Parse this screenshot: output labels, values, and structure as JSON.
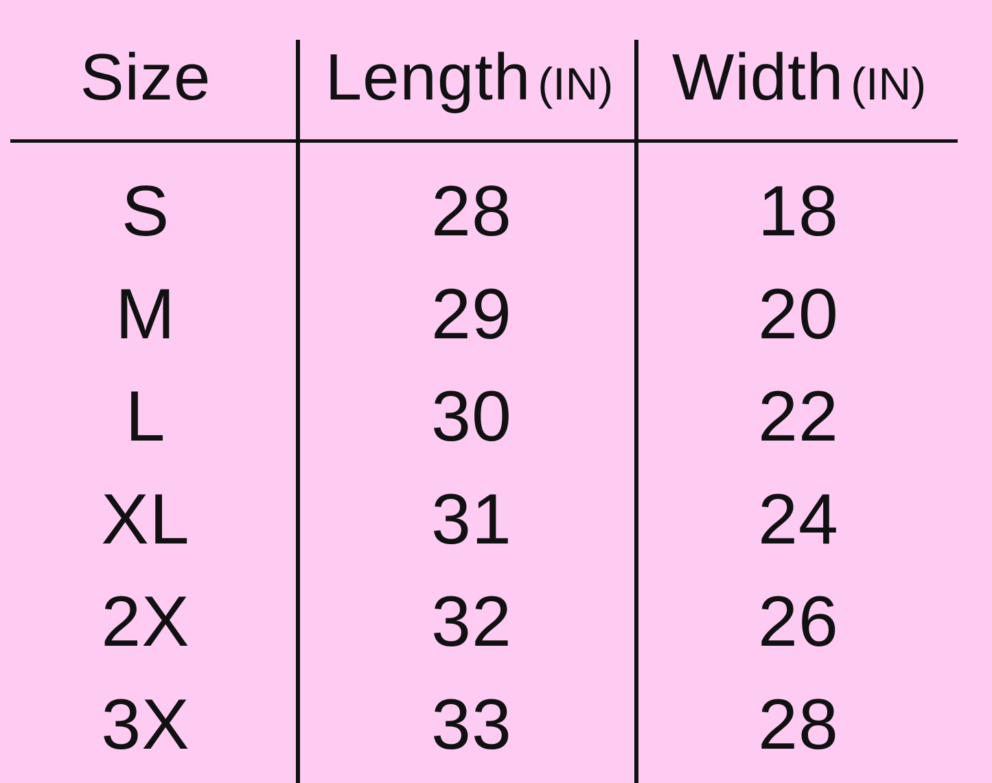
{
  "table": {
    "headers": [
      {
        "label": "Size",
        "unit": ""
      },
      {
        "label": "Length",
        "unit": "(IN)"
      },
      {
        "label": "Width",
        "unit": "(IN)"
      }
    ],
    "rows": [
      [
        "S",
        "28",
        "18"
      ],
      [
        "M",
        "29",
        "20"
      ],
      [
        "L",
        "30",
        "22"
      ],
      [
        "XL",
        "31",
        "24"
      ],
      [
        "2X",
        "32",
        "26"
      ],
      [
        "3X",
        "33",
        "28"
      ]
    ]
  },
  "colors": {
    "background": "#fecbf2",
    "text": "#111111"
  }
}
